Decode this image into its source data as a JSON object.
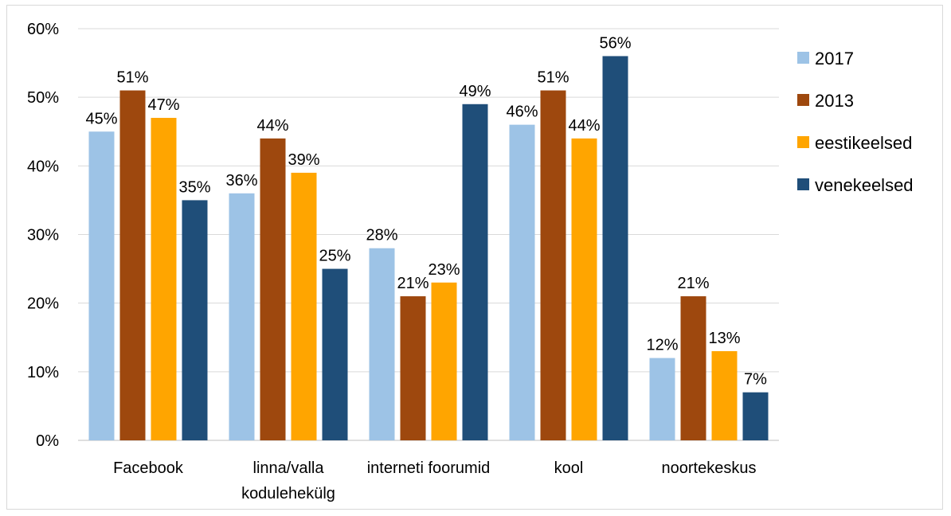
{
  "chart_data": {
    "type": "bar",
    "categories": [
      [
        "Facebook"
      ],
      [
        "linna/valla",
        "kodulehekülg"
      ],
      [
        "interneti foorumid"
      ],
      [
        "kool"
      ],
      [
        "noortekeskus"
      ]
    ],
    "series": [
      {
        "name": "2017",
        "color": "#9dc3e6",
        "values": [
          45,
          36,
          28,
          46,
          12
        ],
        "labels": [
          "45%",
          "36%",
          "28%",
          "46%",
          "12%"
        ]
      },
      {
        "name": "2013",
        "color": "#9e480e",
        "values": [
          51,
          44,
          21,
          51,
          21
        ],
        "labels": [
          "51%",
          "44%",
          "21%",
          "51%",
          "21%"
        ]
      },
      {
        "name": "eestikeelsed",
        "color": "#ffa500",
        "values": [
          47,
          39,
          23,
          44,
          13
        ],
        "labels": [
          "47%",
          "39%",
          "23%",
          "44%",
          "13%"
        ]
      },
      {
        "name": "venekeelsed",
        "color": "#1f4e79",
        "values": [
          35,
          25,
          49,
          56,
          7
        ],
        "labels": [
          "35%",
          "25%",
          "49%",
          "56%",
          "7%"
        ]
      }
    ],
    "yticks": [
      "0%",
      "10%",
      "20%",
      "30%",
      "40%",
      "50%",
      "60%"
    ],
    "ylim": [
      0,
      60
    ],
    "grid": true,
    "legend_position": "right"
  }
}
